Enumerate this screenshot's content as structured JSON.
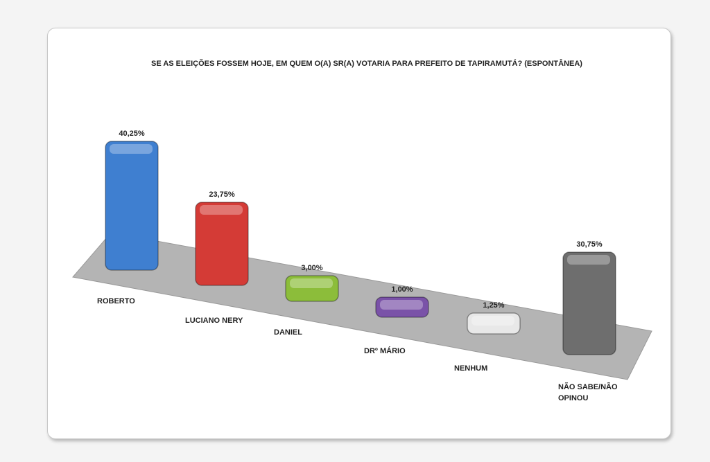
{
  "chart_data": {
    "type": "bar",
    "title": "SE AS ELEIÇÕES FOSSEM HOJE, EM QUEM O(A) SR(A) VOTARIA PARA PREFEITO DE TAPIRAMUTÁ? (ESPONTÂNEA)",
    "categories": [
      "ROBERTO",
      "LUCIANO NERY",
      "DANIEL",
      "DRº MÁRIO",
      "NENHUM",
      "NÃO SABE/NÃO OPINOU"
    ],
    "values": [
      40.25,
      23.75,
      3.0,
      1.0,
      1.25,
      30.75
    ],
    "data_labels": [
      "40,25%",
      "23,75%",
      "3,00%",
      "1,00%",
      "1,25%",
      "30,75%"
    ],
    "colors": [
      "#3f7fd0",
      "#d43b36",
      "#8cbd3a",
      "#7a52a8",
      "#e8e8e8",
      "#6e6e6e"
    ],
    "floor_color": "#b4b4b4",
    "style": "3d-column"
  }
}
